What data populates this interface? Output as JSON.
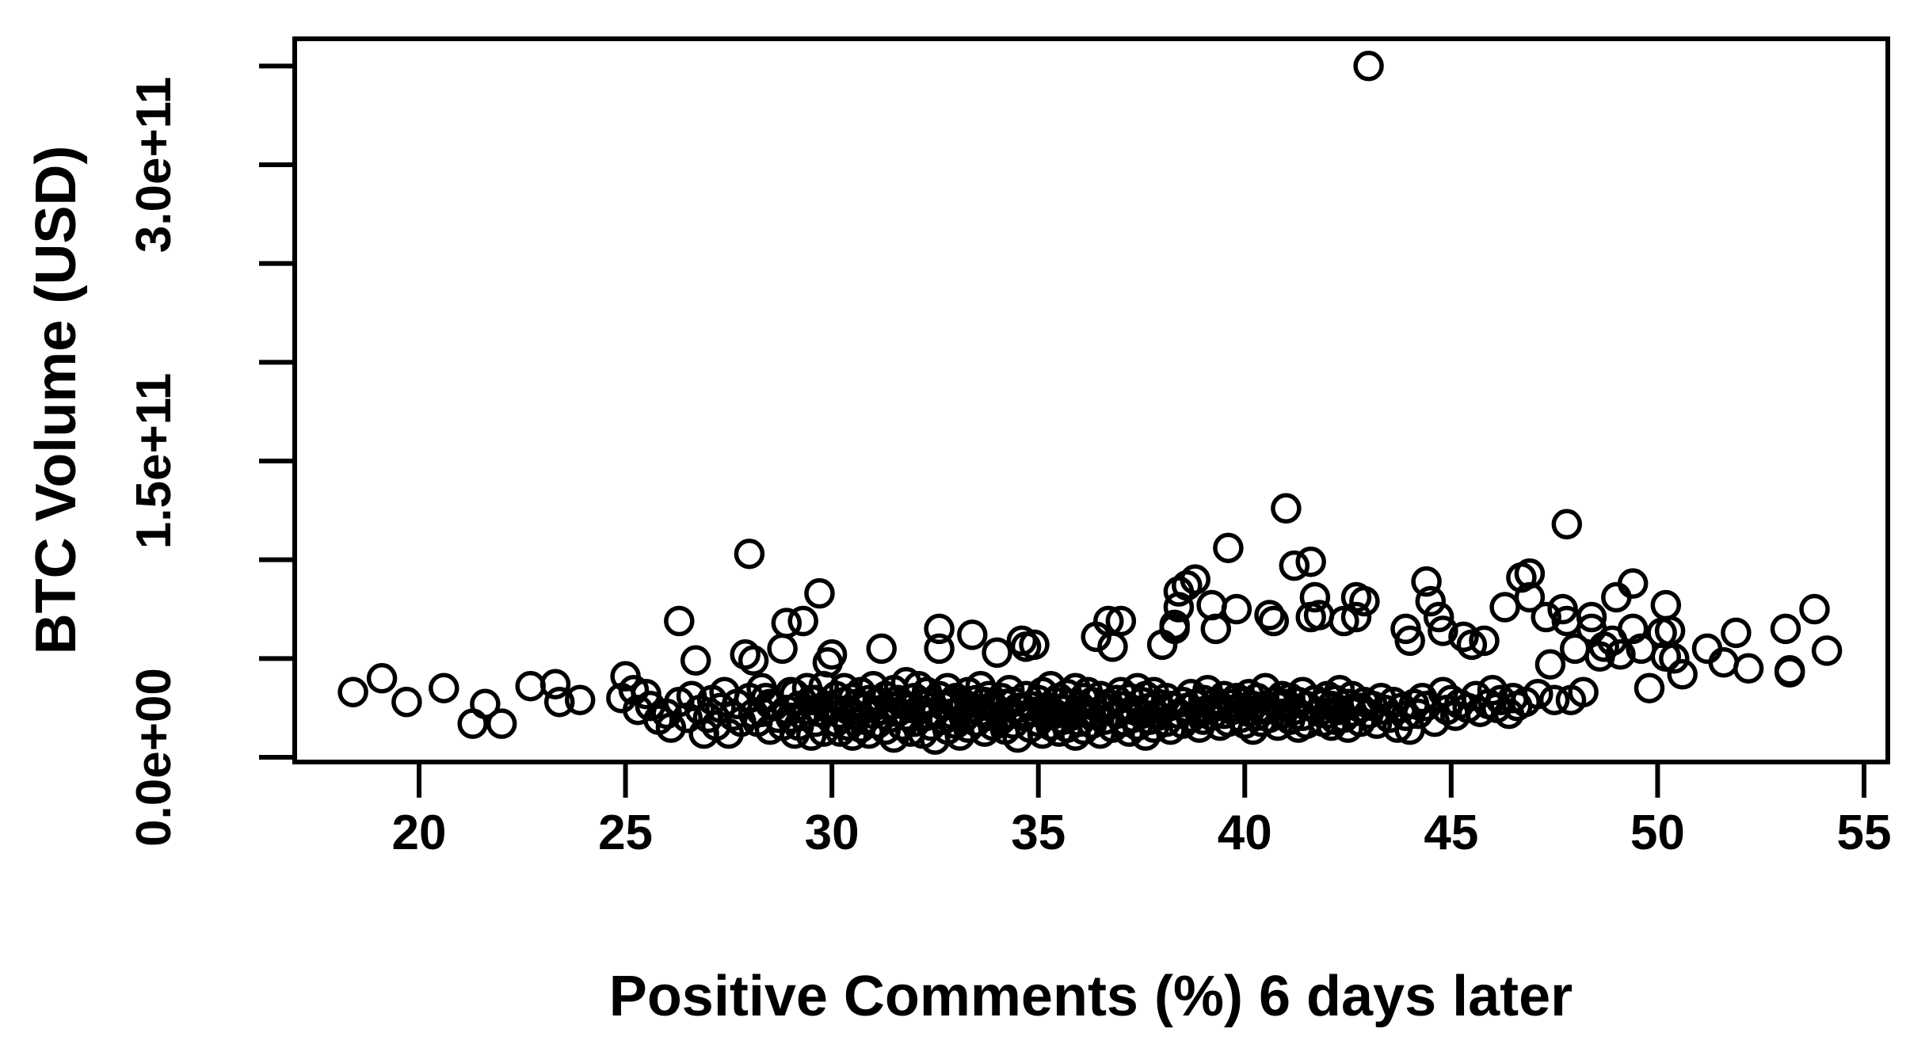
{
  "chart_data": {
    "type": "scatter",
    "title": "",
    "xlabel": "Positive Comments (%) 6 days later",
    "ylabel": "BTC Volume (USD)",
    "marker": {
      "shape": "open-circle",
      "color": "#000000"
    },
    "background_color": "#ffffff",
    "axis_color": "#000000",
    "grid": false,
    "legend": false,
    "xlim": [
      17.0,
      55.5
    ],
    "ylim": [
      0,
      364000000000.0
    ],
    "x_ticks": [
      20,
      25,
      30,
      35,
      40,
      45,
      50,
      55
    ],
    "y_ticks": [
      {
        "value_e9": 0,
        "label": "0.0e+00"
      },
      {
        "value_e9": 50,
        "label": ""
      },
      {
        "value_e9": 100,
        "label": ""
      },
      {
        "value_e9": 150,
        "label": "1.5e+11"
      },
      {
        "value_e9": 200,
        "label": ""
      },
      {
        "value_e9": 250,
        "label": ""
      },
      {
        "value_e9": 300,
        "label": "3.0e+11"
      },
      {
        "value_e9": 350,
        "label": ""
      }
    ],
    "y_unit": "USD",
    "point_y_scale": 1000000000.0,
    "outlier": [
      43.0,
      350
    ],
    "points": [
      [
        18.4,
        33
      ],
      [
        19.1,
        40
      ],
      [
        19.7,
        28
      ],
      [
        20.6,
        35
      ],
      [
        21.3,
        17
      ],
      [
        21.6,
        27
      ],
      [
        22.0,
        17
      ],
      [
        22.7,
        36
      ],
      [
        23.3,
        37
      ],
      [
        23.4,
        28
      ],
      [
        23.9,
        29
      ],
      [
        24.9,
        30
      ],
      [
        25.0,
        41
      ],
      [
        25.2,
        34
      ],
      [
        25.3,
        24
      ],
      [
        25.5,
        32
      ],
      [
        25.6,
        26
      ],
      [
        25.8,
        19
      ],
      [
        26.0,
        22
      ],
      [
        26.1,
        15
      ],
      [
        26.3,
        69
      ],
      [
        26.3,
        28
      ],
      [
        26.5,
        20
      ],
      [
        26.6,
        31
      ],
      [
        26.7,
        49
      ],
      [
        26.8,
        24
      ],
      [
        26.9,
        12
      ],
      [
        27.0,
        20
      ],
      [
        27.1,
        29
      ],
      [
        27.2,
        16
      ],
      [
        27.3,
        25
      ],
      [
        27.4,
        33
      ],
      [
        27.5,
        12
      ],
      [
        27.6,
        21
      ],
      [
        27.7,
        27
      ],
      [
        27.8,
        18
      ],
      [
        27.9,
        52
      ],
      [
        28.0,
        103
      ],
      [
        28.0,
        30
      ],
      [
        28.1,
        49
      ],
      [
        28.1,
        22
      ],
      [
        28.2,
        18
      ],
      [
        28.3,
        23
      ],
      [
        28.3,
        35
      ],
      [
        28.4,
        30
      ],
      [
        28.5,
        14
      ],
      [
        28.5,
        27
      ],
      [
        28.6,
        26
      ],
      [
        28.7,
        20
      ],
      [
        28.8,
        55
      ],
      [
        28.8,
        16
      ],
      [
        28.9,
        68
      ],
      [
        28.9,
        24
      ],
      [
        29.0,
        20
      ],
      [
        29.0,
        33
      ],
      [
        29.1,
        32
      ],
      [
        29.1,
        12
      ],
      [
        29.2,
        16
      ],
      [
        29.2,
        26
      ],
      [
        29.3,
        69
      ],
      [
        29.3,
        21
      ],
      [
        29.4,
        24
      ],
      [
        29.4,
        35
      ],
      [
        29.5,
        11
      ],
      [
        29.5,
        29
      ],
      [
        29.6,
        29
      ],
      [
        29.6,
        18
      ],
      [
        29.7,
        83
      ],
      [
        29.7,
        23
      ],
      [
        29.8,
        36
      ],
      [
        29.8,
        13
      ],
      [
        29.9,
        48
      ],
      [
        29.9,
        26
      ],
      [
        30.0,
        52
      ],
      [
        30.0,
        25
      ],
      [
        30.1,
        18
      ],
      [
        30.1,
        31
      ],
      [
        30.2,
        22
      ],
      [
        30.2,
        13
      ],
      [
        30.3,
        28
      ],
      [
        30.3,
        35
      ],
      [
        30.4,
        16
      ],
      [
        30.4,
        24
      ],
      [
        30.5,
        30
      ],
      [
        30.5,
        11
      ],
      [
        30.6,
        21
      ],
      [
        30.6,
        27
      ],
      [
        30.7,
        33
      ],
      [
        30.7,
        15
      ],
      [
        30.8,
        25
      ],
      [
        30.8,
        19
      ],
      [
        30.9,
        29
      ],
      [
        30.9,
        12
      ],
      [
        31.0,
        36
      ],
      [
        31.0,
        22
      ],
      [
        31.1,
        17
      ],
      [
        31.1,
        28
      ],
      [
        31.2,
        55
      ],
      [
        31.2,
        24
      ],
      [
        31.3,
        14
      ],
      [
        31.3,
        31
      ],
      [
        31.4,
        20
      ],
      [
        31.4,
        26
      ],
      [
        31.5,
        34
      ],
      [
        31.5,
        10
      ],
      [
        31.6,
        23
      ],
      [
        31.6,
        29
      ],
      [
        31.7,
        16
      ],
      [
        31.7,
        27
      ],
      [
        31.8,
        21
      ],
      [
        31.8,
        38
      ],
      [
        31.9,
        13
      ],
      [
        31.9,
        25
      ],
      [
        32.0,
        30
      ],
      [
        32.0,
        18
      ],
      [
        32.1,
        24
      ],
      [
        32.1,
        36
      ],
      [
        32.2,
        12
      ],
      [
        32.2,
        27
      ],
      [
        32.3,
        21
      ],
      [
        32.3,
        33
      ],
      [
        32.4,
        16
      ],
      [
        32.4,
        28
      ],
      [
        32.5,
        23
      ],
      [
        32.5,
        9
      ],
      [
        32.6,
        65
      ],
      [
        32.6,
        55
      ],
      [
        32.6,
        31
      ],
      [
        32.7,
        19
      ],
      [
        32.7,
        26
      ],
      [
        32.8,
        14
      ],
      [
        32.8,
        35
      ],
      [
        32.9,
        22
      ],
      [
        32.9,
        28
      ],
      [
        33.0,
        17
      ],
      [
        33.0,
        30
      ],
      [
        33.1,
        24
      ],
      [
        33.1,
        11
      ],
      [
        33.2,
        27
      ],
      [
        33.2,
        20
      ],
      [
        33.3,
        33
      ],
      [
        33.3,
        15
      ],
      [
        33.4,
        62
      ],
      [
        33.4,
        25
      ],
      [
        33.5,
        29
      ],
      [
        33.5,
        18
      ],
      [
        33.6,
        23
      ],
      [
        33.6,
        36
      ],
      [
        33.7,
        13
      ],
      [
        33.7,
        28
      ],
      [
        33.8,
        21
      ],
      [
        33.8,
        31
      ],
      [
        33.9,
        16
      ],
      [
        33.9,
        26
      ],
      [
        34.0,
        53
      ],
      [
        34.0,
        24
      ],
      [
        34.1,
        19
      ],
      [
        34.1,
        30
      ],
      [
        34.2,
        14
      ],
      [
        34.2,
        27
      ],
      [
        34.3,
        22
      ],
      [
        34.3,
        34
      ],
      [
        34.4,
        17
      ],
      [
        34.4,
        28
      ],
      [
        34.5,
        25
      ],
      [
        34.5,
        10
      ],
      [
        34.6,
        59
      ],
      [
        34.6,
        21
      ],
      [
        34.7,
        56
      ],
      [
        34.7,
        31
      ],
      [
        34.8,
        15
      ],
      [
        34.8,
        26
      ],
      [
        34.9,
        57
      ],
      [
        34.9,
        23
      ],
      [
        35.0,
        29
      ],
      [
        35.0,
        18
      ],
      [
        35.1,
        33
      ],
      [
        35.1,
        12
      ],
      [
        35.2,
        25
      ],
      [
        35.2,
        21
      ],
      [
        35.3,
        36
      ],
      [
        35.3,
        16
      ],
      [
        35.4,
        28
      ],
      [
        35.4,
        22
      ],
      [
        35.5,
        13
      ],
      [
        35.5,
        30
      ],
      [
        35.6,
        24
      ],
      [
        35.6,
        19
      ],
      [
        35.7,
        32
      ],
      [
        35.7,
        15
      ],
      [
        35.8,
        27
      ],
      [
        35.8,
        21
      ],
      [
        35.9,
        35
      ],
      [
        35.9,
        11
      ],
      [
        36.0,
        26
      ],
      [
        36.0,
        18
      ],
      [
        36.1,
        30
      ],
      [
        36.1,
        14
      ],
      [
        36.2,
        23
      ],
      [
        36.2,
        33
      ],
      [
        36.3,
        17
      ],
      [
        36.3,
        28
      ],
      [
        36.4,
        61
      ],
      [
        36.4,
        22
      ],
      [
        36.5,
        12
      ],
      [
        36.5,
        31
      ],
      [
        36.6,
        25
      ],
      [
        36.6,
        19
      ],
      [
        36.7,
        69
      ],
      [
        36.7,
        27
      ],
      [
        36.8,
        56
      ],
      [
        36.8,
        15
      ],
      [
        36.9,
        29
      ],
      [
        36.9,
        22
      ],
      [
        37.0,
        69
      ],
      [
        37.0,
        33
      ],
      [
        37.1,
        18
      ],
      [
        37.1,
        26
      ],
      [
        37.2,
        13
      ],
      [
        37.2,
        30
      ],
      [
        37.3,
        24
      ],
      [
        37.3,
        20
      ],
      [
        37.4,
        35
      ],
      [
        37.4,
        16
      ],
      [
        37.5,
        28
      ],
      [
        37.5,
        22
      ],
      [
        37.6,
        11
      ],
      [
        37.6,
        31
      ],
      [
        37.7,
        25
      ],
      [
        37.7,
        19
      ],
      [
        37.8,
        33
      ],
      [
        37.8,
        15
      ],
      [
        37.9,
        27
      ],
      [
        37.9,
        21
      ],
      [
        38.0,
        57
      ],
      [
        38.0,
        24
      ],
      [
        38.1,
        18
      ],
      [
        38.1,
        30
      ],
      [
        38.2,
        26
      ],
      [
        38.2,
        14
      ],
      [
        38.3,
        65
      ],
      [
        38.3,
        67
      ],
      [
        38.4,
        76
      ],
      [
        38.4,
        84
      ],
      [
        38.4,
        22
      ],
      [
        38.5,
        28
      ],
      [
        38.5,
        17
      ],
      [
        38.6,
        87
      ],
      [
        38.6,
        25
      ],
      [
        38.7,
        32
      ],
      [
        38.7,
        20
      ],
      [
        38.8,
        90
      ],
      [
        38.8,
        27
      ],
      [
        38.9,
        15
      ],
      [
        38.9,
        23
      ],
      [
        39.0,
        29
      ],
      [
        39.0,
        19
      ],
      [
        39.1,
        34
      ],
      [
        39.1,
        24
      ],
      [
        39.2,
        77
      ],
      [
        39.2,
        21
      ],
      [
        39.3,
        65
      ],
      [
        39.3,
        28
      ],
      [
        39.4,
        16
      ],
      [
        39.4,
        26
      ],
      [
        39.5,
        31
      ],
      [
        39.5,
        22
      ],
      [
        39.6,
        106
      ],
      [
        39.6,
        18
      ],
      [
        39.7,
        27
      ],
      [
        39.7,
        24
      ],
      [
        39.8,
        75
      ],
      [
        39.8,
        30
      ],
      [
        39.9,
        20
      ],
      [
        39.9,
        25
      ],
      [
        40.0,
        28
      ],
      [
        40.0,
        17
      ],
      [
        40.1,
        32
      ],
      [
        40.1,
        23
      ],
      [
        40.2,
        26
      ],
      [
        40.2,
        14
      ],
      [
        40.3,
        30
      ],
      [
        40.3,
        21
      ],
      [
        40.4,
        25
      ],
      [
        40.4,
        18
      ],
      [
        40.5,
        35
      ],
      [
        40.5,
        24
      ],
      [
        40.6,
        72
      ],
      [
        40.6,
        20
      ],
      [
        40.7,
        69
      ],
      [
        40.7,
        28
      ],
      [
        40.8,
        16
      ],
      [
        40.8,
        26
      ],
      [
        40.9,
        31
      ],
      [
        40.9,
        22
      ],
      [
        41.0,
        126
      ],
      [
        41.0,
        27
      ],
      [
        41.1,
        19
      ],
      [
        41.1,
        30
      ],
      [
        41.2,
        97
      ],
      [
        41.2,
        24
      ],
      [
        41.3,
        15
      ],
      [
        41.3,
        28
      ],
      [
        41.4,
        33
      ],
      [
        41.4,
        21
      ],
      [
        41.5,
        17
      ],
      [
        41.5,
        26
      ],
      [
        41.6,
        99
      ],
      [
        41.6,
        71
      ],
      [
        41.7,
        81
      ],
      [
        41.7,
        29
      ],
      [
        41.8,
        72
      ],
      [
        41.8,
        23
      ],
      [
        41.9,
        18
      ],
      [
        41.9,
        27
      ],
      [
        42.0,
        31
      ],
      [
        42.0,
        22
      ],
      [
        42.1,
        26
      ],
      [
        42.1,
        16
      ],
      [
        42.2,
        19
      ],
      [
        42.2,
        29
      ],
      [
        42.3,
        24
      ],
      [
        42.3,
        34
      ],
      [
        42.4,
        69
      ],
      [
        42.4,
        20
      ],
      [
        42.5,
        27
      ],
      [
        42.5,
        15
      ],
      [
        42.6,
        23
      ],
      [
        42.6,
        31
      ],
      [
        42.7,
        81
      ],
      [
        42.7,
        71
      ],
      [
        42.8,
        25
      ],
      [
        42.8,
        18
      ],
      [
        42.9,
        79
      ],
      [
        42.9,
        28
      ],
      [
        43.0,
        350
      ],
      [
        43.0,
        22
      ],
      [
        43.1,
        26
      ],
      [
        43.2,
        17
      ],
      [
        43.3,
        30
      ],
      [
        43.4,
        24
      ],
      [
        43.5,
        20
      ],
      [
        43.6,
        28
      ],
      [
        43.7,
        15
      ],
      [
        43.8,
        25
      ],
      [
        43.9,
        65
      ],
      [
        43.9,
        21
      ],
      [
        44.0,
        59
      ],
      [
        44.0,
        14
      ],
      [
        44.1,
        27
      ],
      [
        44.2,
        22
      ],
      [
        44.3,
        30
      ],
      [
        44.4,
        89
      ],
      [
        44.4,
        26
      ],
      [
        44.5,
        79
      ],
      [
        44.6,
        18
      ],
      [
        44.7,
        71
      ],
      [
        44.8,
        64
      ],
      [
        44.8,
        33
      ],
      [
        44.9,
        24
      ],
      [
        45.0,
        29
      ],
      [
        45.1,
        21
      ],
      [
        45.2,
        27
      ],
      [
        45.3,
        61
      ],
      [
        45.4,
        25
      ],
      [
        45.5,
        57
      ],
      [
        45.6,
        31
      ],
      [
        45.7,
        23
      ],
      [
        45.8,
        59
      ],
      [
        45.9,
        27
      ],
      [
        46.0,
        34
      ],
      [
        46.1,
        25
      ],
      [
        46.2,
        29
      ],
      [
        46.3,
        76
      ],
      [
        46.4,
        22
      ],
      [
        46.5,
        30
      ],
      [
        46.6,
        26
      ],
      [
        46.7,
        91
      ],
      [
        46.8,
        28
      ],
      [
        46.9,
        93
      ],
      [
        46.9,
        81
      ],
      [
        47.1,
        32
      ],
      [
        47.3,
        71
      ],
      [
        47.4,
        47
      ],
      [
        47.5,
        29
      ],
      [
        47.7,
        75
      ],
      [
        47.8,
        118
      ],
      [
        47.8,
        69
      ],
      [
        47.9,
        29
      ],
      [
        48.0,
        55
      ],
      [
        48.2,
        33
      ],
      [
        48.4,
        71
      ],
      [
        48.4,
        65
      ],
      [
        48.6,
        51
      ],
      [
        48.7,
        56
      ],
      [
        48.9,
        59
      ],
      [
        49.0,
        81
      ],
      [
        49.1,
        52
      ],
      [
        49.4,
        88
      ],
      [
        49.4,
        65
      ],
      [
        49.6,
        55
      ],
      [
        49.8,
        35
      ],
      [
        50.1,
        63
      ],
      [
        50.2,
        77
      ],
      [
        50.2,
        51
      ],
      [
        50.3,
        64
      ],
      [
        50.4,
        50
      ],
      [
        50.6,
        42
      ],
      [
        51.2,
        55
      ],
      [
        51.6,
        48
      ],
      [
        51.9,
        63
      ],
      [
        52.2,
        45
      ],
      [
        53.1,
        65
      ],
      [
        53.2,
        44
      ],
      [
        53.2,
        43
      ],
      [
        53.8,
        75
      ],
      [
        54.1,
        54
      ]
    ]
  }
}
